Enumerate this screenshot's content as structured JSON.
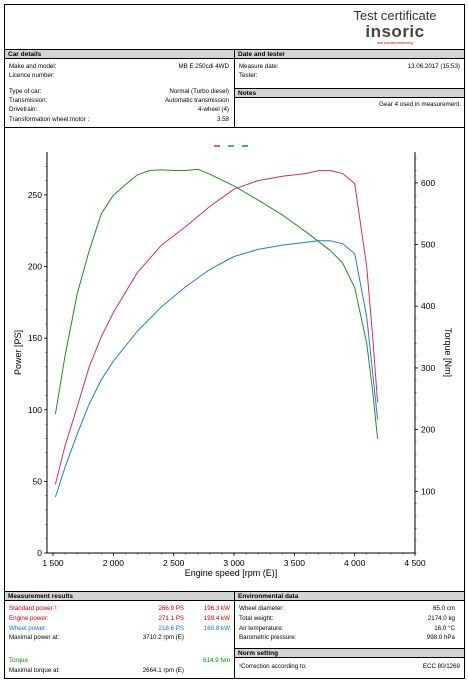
{
  "header": {
    "title": "Test certificate",
    "logo_text": "insoric",
    "logo_tagline": "and precise measuring"
  },
  "car_details": {
    "title": "Car details",
    "rows": [
      {
        "label": "Make and model:",
        "value": "MB  E  250cdi  4WD"
      },
      {
        "label": "Licence number:",
        "value": ""
      },
      {
        "label": "Type of car:",
        "value": "Normal (Turbo diesel)"
      },
      {
        "label": "Transmission:",
        "value": "Automatic transmission"
      },
      {
        "label": "Drivetrain:",
        "value": "4-wheel (4)"
      },
      {
        "label": "Transformation wheel:motor :",
        "value": "3.58"
      }
    ]
  },
  "date_tester": {
    "title": "Date and tester",
    "rows": [
      {
        "label": "Measure date:",
        "value": "13.06.2017 (15:53)"
      },
      {
        "label": "Tester:",
        "value": ""
      }
    ]
  },
  "notes": {
    "title": "Notes",
    "text": "Gear 4 used in measurement."
  },
  "measurement": {
    "title": "Measurement results",
    "rows": [
      {
        "label": "Standard power ¹:",
        "v1": "266.9 PS",
        "v2": "196.3 kW",
        "cls": "c-std"
      },
      {
        "label": "Engine power:",
        "v1": "271.1 PS",
        "v2": "199.4 kW",
        "cls": "c-eng"
      },
      {
        "label": "Wheel power:",
        "v1": "218.6 PS",
        "v2": "160.8 kW",
        "cls": "c-whl"
      },
      {
        "label": "Maximal power at:",
        "v1": "3710.2 rpm (E)",
        "v2": "",
        "cls": ""
      },
      {
        "label": "Torque",
        "v1": "",
        "v2": "614.9 Nm",
        "cls": "c-tq"
      },
      {
        "label": "Maximal torque at:",
        "v1": "2664.1 rpm (E)",
        "v2": "",
        "cls": ""
      }
    ]
  },
  "environment": {
    "title": "Environmental data",
    "rows": [
      {
        "label": "Wheel diameter:",
        "value": "65.0 cm"
      },
      {
        "label": "Total weight:",
        "value": "2174.0 kg"
      },
      {
        "label": "Air temperature:",
        "value": "16.0 °C"
      },
      {
        "label": "Barometric pressure:",
        "value": "998.0 hPa"
      }
    ]
  },
  "norm": {
    "title": "Norm setting",
    "label": "¹Correction according to:",
    "value": "ECC 80/1269"
  },
  "chart_data": {
    "type": "line",
    "xlabel": "Engine speed [rpm (E)]",
    "ylabel": "Power [PS]",
    "y2label": "Torque [Nm]",
    "xlim": [
      1450,
      4500
    ],
    "ylim": [
      0,
      280
    ],
    "y2lim": [
      0,
      650
    ],
    "x_ticks": [
      1500,
      2000,
      2500,
      3000,
      3500,
      4000,
      4500
    ],
    "x_tick_labels": [
      "1 500",
      "2 000",
      "2 500",
      "3 000",
      "3 500",
      "4 000",
      "4 500"
    ],
    "y_ticks": [
      0,
      50,
      100,
      150,
      200,
      250
    ],
    "y2_ticks": [
      100,
      200,
      300,
      400,
      500,
      600
    ],
    "series": [
      {
        "color": "#d0306a",
        "axis": "left",
        "x": [
          1520,
          1600,
          1700,
          1800,
          1900,
          2000,
          2200,
          2400,
          2600,
          2800,
          3000,
          3200,
          3400,
          3600,
          3700,
          3800,
          3900,
          4000,
          4100,
          4150,
          4190
        ],
        "y": [
          48,
          75,
          102,
          130,
          151,
          168,
          196,
          215,
          228,
          242,
          254,
          260,
          263,
          265,
          267,
          267,
          265,
          258,
          200,
          150,
          105
        ]
      },
      {
        "color": "#2a78d0",
        "axis": "left",
        "x": [
          1520,
          1600,
          1700,
          1800,
          1900,
          2000,
          2200,
          2400,
          2600,
          2800,
          3000,
          3200,
          3400,
          3600,
          3700,
          3800,
          3900,
          4000,
          4100,
          4150,
          4190
        ],
        "y": [
          39,
          60,
          83,
          104,
          121,
          134,
          155,
          172,
          186,
          198,
          207,
          212,
          215,
          217,
          218,
          218,
          216,
          209,
          165,
          125,
          93
        ]
      },
      {
        "color": "#2a8a2a",
        "axis": "right",
        "x": [
          1520,
          1600,
          1700,
          1800,
          1900,
          2000,
          2100,
          2200,
          2300,
          2400,
          2500,
          2600,
          2700,
          2800,
          3000,
          3200,
          3400,
          3600,
          3800,
          3900,
          4000,
          4100,
          4150,
          4190
        ],
        "y": [
          225,
          320,
          420,
          490,
          550,
          580,
          597,
          613,
          620,
          621,
          620,
          620,
          622,
          614,
          595,
          572,
          548,
          520,
          490,
          470,
          430,
          340,
          260,
          185
        ]
      }
    ]
  }
}
